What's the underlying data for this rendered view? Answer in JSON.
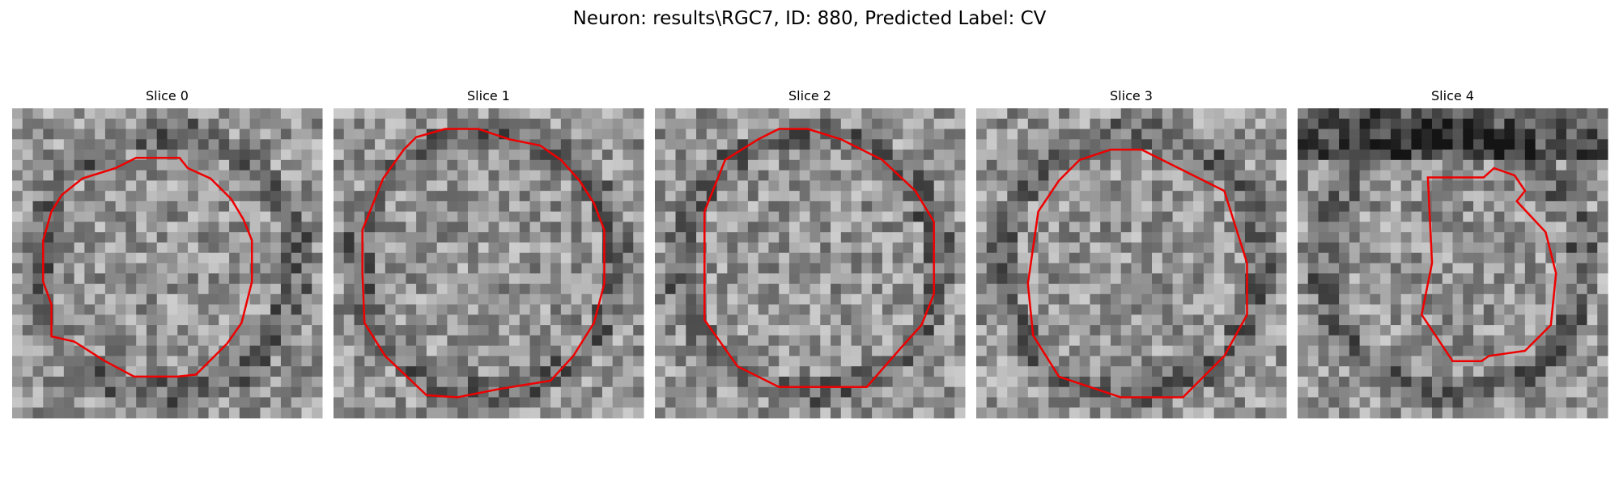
{
  "title": "Neuron: results\\RGC7, ID: 880, Predicted Label: CV",
  "panels": [
    {
      "title": "Slice 0"
    },
    {
      "title": "Slice 1"
    },
    {
      "title": "Slice 2"
    },
    {
      "title": "Slice 3"
    },
    {
      "title": "Slice 4"
    }
  ]
}
